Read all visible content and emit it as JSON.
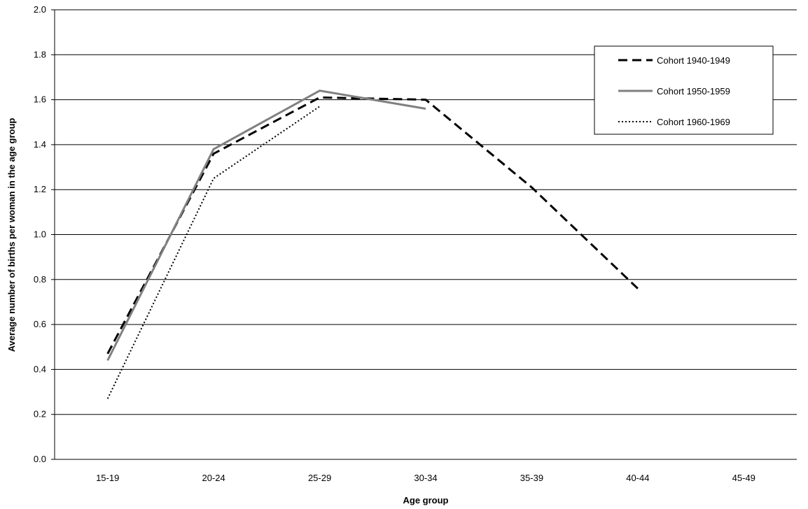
{
  "chart_data": {
    "type": "line",
    "title": "",
    "xlabel": "Age group",
    "ylabel": "Average number of births per woman in the age group",
    "categories": [
      "15-19",
      "20-24",
      "25-29",
      "30-34",
      "35-39",
      "40-44",
      "45-49"
    ],
    "y_ticks": [
      "0.0",
      "0.2",
      "0.4",
      "0.6",
      "0.8",
      "1.0",
      "1.2",
      "1.4",
      "1.6",
      "1.8",
      "2.0"
    ],
    "ylim": [
      0,
      2
    ],
    "grid": true,
    "legend_position": "top-right",
    "series": [
      {
        "name": "Cohort 1940-1949",
        "values": [
          0.47,
          1.36,
          1.61,
          1.6,
          1.21,
          0.76,
          null
        ],
        "color": "#000000",
        "style": "dashed"
      },
      {
        "name": "Cohort 1950-1959",
        "values": [
          0.44,
          1.38,
          1.64,
          1.56,
          null,
          null,
          null
        ],
        "color": "#808080",
        "style": "solid"
      },
      {
        "name": "Cohort 1960-1969",
        "values": [
          0.27,
          1.25,
          1.57,
          null,
          null,
          null,
          null
        ],
        "color": "#000000",
        "style": "dotted"
      }
    ]
  }
}
